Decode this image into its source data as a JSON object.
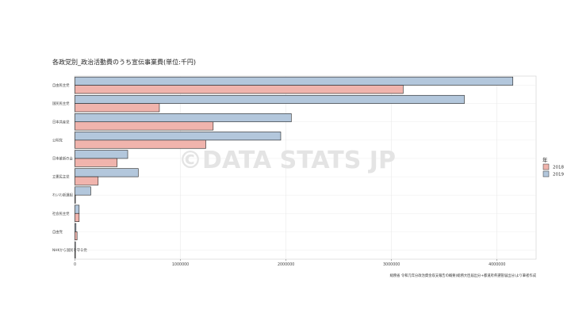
{
  "chart_data": {
    "type": "bar",
    "orientation": "horizontal",
    "title": "各政党別_政治活動費のうち宣伝事業費(単位:千円)",
    "categories": [
      "自由民主党",
      "国民民主党",
      "日本共産党",
      "公明党",
      "日本維新の会",
      "立憲民主党",
      "れいわ新選組",
      "社会民主党",
      "自由党",
      "NHKから国民を守る党"
    ],
    "series": [
      {
        "name": "2019",
        "color": "#b3c7dc",
        "values": [
          4150000,
          3690000,
          2050000,
          1950000,
          500000,
          600000,
          150000,
          40000,
          10000,
          5000
        ]
      },
      {
        "name": "2018",
        "color": "#f0b4ad",
        "values": [
          3110000,
          800000,
          1310000,
          1240000,
          400000,
          220000,
          0,
          40000,
          20000,
          0
        ]
      }
    ],
    "legend_title": "年",
    "legend_entries": [
      "2018",
      "2019"
    ],
    "legend_position": "right",
    "xlim": [
      0,
      4370000
    ],
    "x_ticks": [
      0,
      1000000,
      2000000,
      3000000,
      4000000
    ],
    "x_tick_labels": [
      "0",
      "1000000",
      "2000000",
      "3000000",
      "4000000"
    ],
    "grid": true,
    "caption": "総務省 令和元年分政治資金収支報告の概要(総務大臣届出分+都道府県選管届出分)より筆者作成",
    "watermark": "©DATA STATS JP"
  }
}
